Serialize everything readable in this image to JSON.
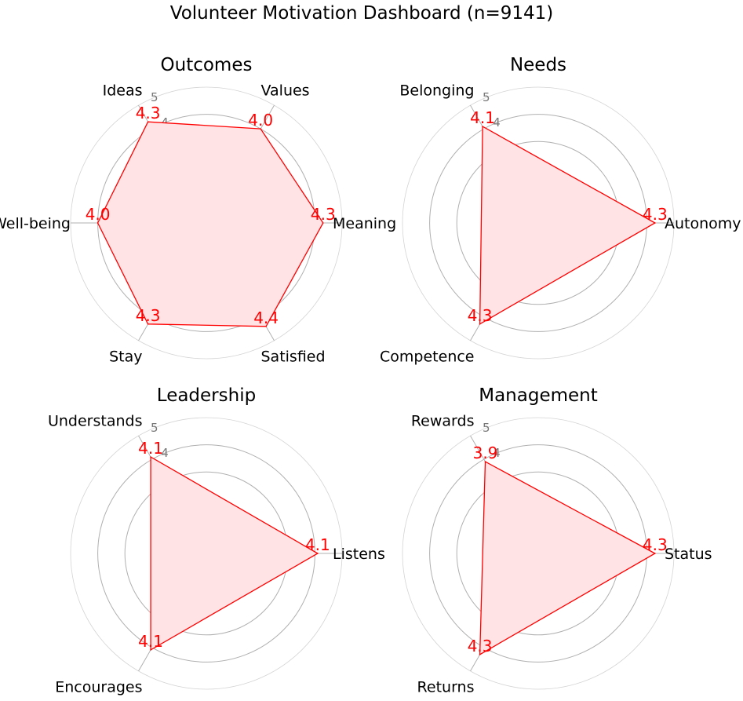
{
  "title": "Volunteer Motivation Dashboard (n=9141)",
  "colors": {
    "series": "#ff0000",
    "fill": "#ffe3e5",
    "grid": "#b0b0b0",
    "outer_grid": "#d4d4d4",
    "tick_label": "#777777"
  },
  "chart_data": [
    {
      "type": "radar",
      "title": "Outcomes",
      "axes": [
        "Meaning",
        "Values",
        "Ideas",
        "Well-being",
        "Stay",
        "Satisfied"
      ],
      "values": [
        4.3,
        4.0,
        4.3,
        4.0,
        4.3,
        4.4
      ],
      "value_labels": [
        "4.3",
        "4.0",
        "4.3",
        "4.0",
        "4.3",
        "4.4"
      ],
      "rlim": [
        0,
        5
      ],
      "rticks": [
        "1",
        "2",
        "3",
        "4",
        "5"
      ],
      "grid": true
    },
    {
      "type": "radar",
      "title": "Needs",
      "axes": [
        "Autonomy",
        "Belonging",
        "Competence"
      ],
      "values": [
        4.3,
        4.1,
        4.3
      ],
      "value_labels": [
        "4.3",
        "4.1",
        "4.3"
      ],
      "rlim": [
        0,
        5
      ],
      "rticks": [
        "1",
        "2",
        "3",
        "4",
        "5"
      ],
      "grid": true
    },
    {
      "type": "radar",
      "title": "Leadership",
      "axes": [
        "Listens",
        "Understands",
        "Encourages"
      ],
      "values": [
        4.1,
        4.1,
        4.1
      ],
      "value_labels": [
        "4.1",
        "4.1",
        "4.1"
      ],
      "rlim": [
        0,
        5
      ],
      "rticks": [
        "1",
        "2",
        "3",
        "4",
        "5"
      ],
      "grid": true
    },
    {
      "type": "radar",
      "title": "Management",
      "axes": [
        "Status",
        "Rewards",
        "Returns"
      ],
      "values": [
        4.3,
        3.9,
        4.3
      ],
      "value_labels": [
        "4.3",
        "3.9",
        "4.3"
      ],
      "rlim": [
        0,
        5
      ],
      "rticks": [
        "1",
        "2",
        "3",
        "4",
        "5"
      ],
      "grid": true
    }
  ]
}
